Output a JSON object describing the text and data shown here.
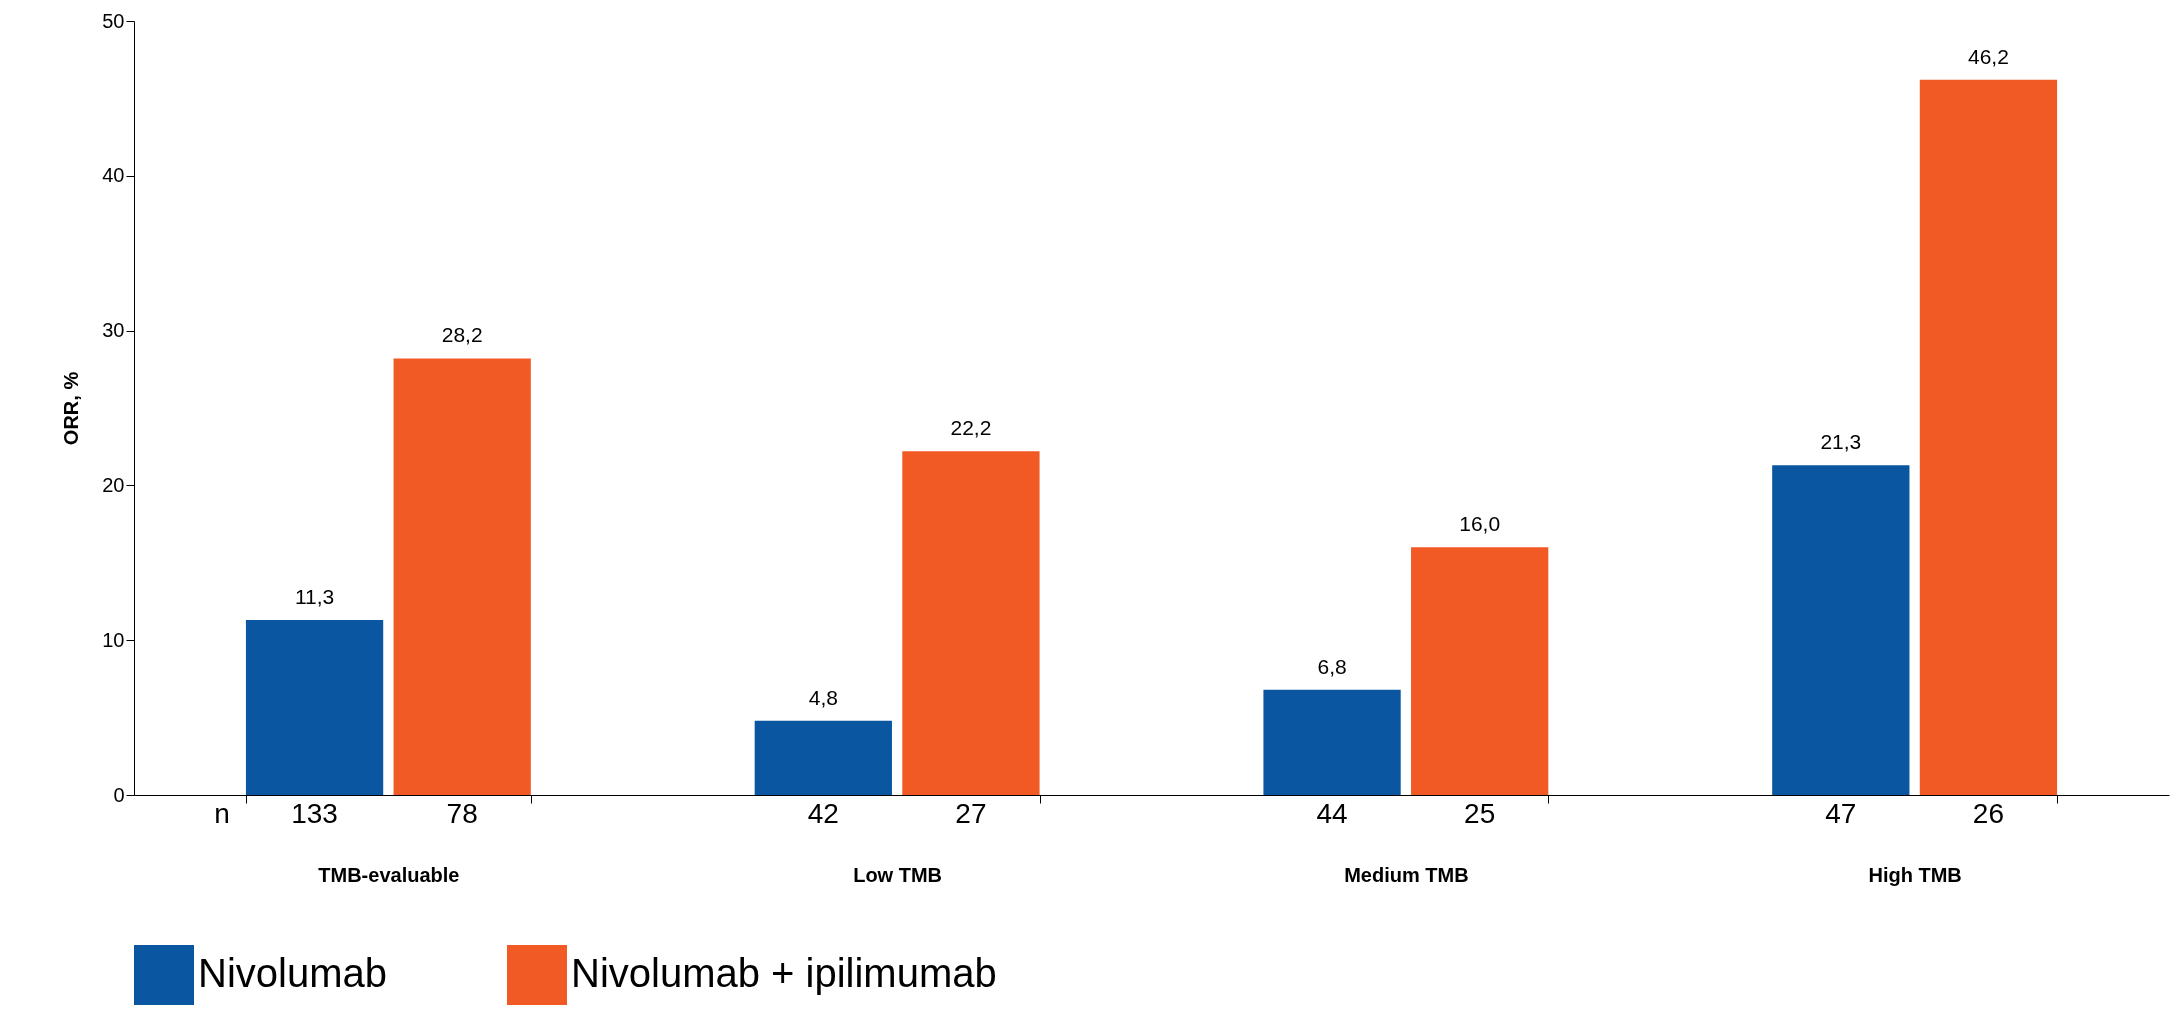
{
  "chart_data": {
    "type": "bar",
    "ylabel": "ORR, %",
    "categories": [
      "TMB-evaluable",
      "Low TMB",
      "Medium TMB",
      "High TMB"
    ],
    "series": [
      {
        "name": "Nivolumab",
        "color": "#0a56a0",
        "values": [
          11.3,
          4.8,
          6.8,
          21.3
        ],
        "value_labels": [
          "11,3",
          "4,8",
          "6,8",
          "21,3"
        ]
      },
      {
        "name": "Nivolumab + ipilimumab",
        "color": "#f15a24",
        "values": [
          28.2,
          22.2,
          16.0,
          46.2
        ],
        "value_labels": [
          "28,2",
          "22,2",
          "16,0",
          "46,2"
        ]
      }
    ],
    "ylim": [
      0,
      50
    ],
    "yticks": [
      0,
      10,
      20,
      30,
      40,
      50
    ],
    "grid": false,
    "legend": "bottom",
    "annotations": [
      "n",
      "133",
      "78",
      "42",
      "27",
      "44",
      "25",
      "47",
      "26"
    ]
  }
}
